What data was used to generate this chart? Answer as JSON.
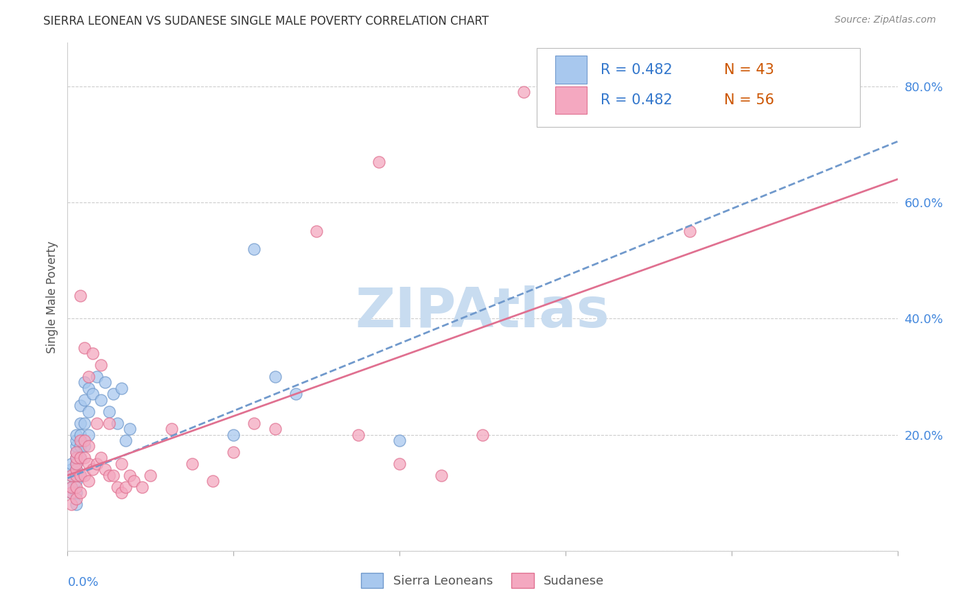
{
  "title": "SIERRA LEONEAN VS SUDANESE SINGLE MALE POVERTY CORRELATION CHART",
  "source": "Source: ZipAtlas.com",
  "ylabel": "Single Male Poverty",
  "r_sl": 0.482,
  "n_sl": 43,
  "r_su": 0.482,
  "n_su": 56,
  "xlim": [
    0.0,
    0.2
  ],
  "ylim": [
    0.0,
    0.875
  ],
  "yticks": [
    0.2,
    0.4,
    0.6,
    0.8
  ],
  "ytick_labels": [
    "20.0%",
    "40.0%",
    "60.0%",
    "80.0%"
  ],
  "color_sl": "#A8C8EE",
  "color_su": "#F4A8C0",
  "color_sl_line": "#7099CC",
  "color_su_line": "#E07090",
  "watermark_color": "#C8DCF0",
  "sl_x": [
    0.001,
    0.001,
    0.001,
    0.001,
    0.001,
    0.002,
    0.002,
    0.002,
    0.002,
    0.002,
    0.002,
    0.002,
    0.002,
    0.002,
    0.002,
    0.003,
    0.003,
    0.003,
    0.003,
    0.003,
    0.003,
    0.004,
    0.004,
    0.004,
    0.004,
    0.005,
    0.005,
    0.005,
    0.006,
    0.007,
    0.008,
    0.009,
    0.01,
    0.011,
    0.012,
    0.013,
    0.014,
    0.015,
    0.04,
    0.045,
    0.05,
    0.055,
    0.08
  ],
  "sl_y": [
    0.1,
    0.11,
    0.13,
    0.14,
    0.15,
    0.08,
    0.1,
    0.12,
    0.14,
    0.15,
    0.16,
    0.17,
    0.18,
    0.19,
    0.2,
    0.13,
    0.16,
    0.18,
    0.2,
    0.22,
    0.25,
    0.18,
    0.22,
    0.26,
    0.29,
    0.2,
    0.24,
    0.28,
    0.27,
    0.3,
    0.26,
    0.29,
    0.24,
    0.27,
    0.22,
    0.28,
    0.19,
    0.21,
    0.2,
    0.52,
    0.3,
    0.27,
    0.19
  ],
  "su_x": [
    0.001,
    0.001,
    0.001,
    0.001,
    0.002,
    0.002,
    0.002,
    0.002,
    0.002,
    0.002,
    0.002,
    0.003,
    0.003,
    0.003,
    0.003,
    0.003,
    0.004,
    0.004,
    0.004,
    0.004,
    0.005,
    0.005,
    0.005,
    0.005,
    0.006,
    0.006,
    0.007,
    0.007,
    0.008,
    0.008,
    0.009,
    0.01,
    0.01,
    0.011,
    0.012,
    0.013,
    0.013,
    0.014,
    0.015,
    0.016,
    0.018,
    0.02,
    0.025,
    0.03,
    0.035,
    0.04,
    0.045,
    0.05,
    0.06,
    0.07,
    0.075,
    0.08,
    0.09,
    0.1,
    0.11,
    0.15
  ],
  "su_y": [
    0.08,
    0.1,
    0.11,
    0.13,
    0.09,
    0.11,
    0.13,
    0.14,
    0.15,
    0.16,
    0.17,
    0.1,
    0.13,
    0.16,
    0.19,
    0.44,
    0.13,
    0.16,
    0.19,
    0.35,
    0.12,
    0.15,
    0.18,
    0.3,
    0.14,
    0.34,
    0.15,
    0.22,
    0.16,
    0.32,
    0.14,
    0.13,
    0.22,
    0.13,
    0.11,
    0.1,
    0.15,
    0.11,
    0.13,
    0.12,
    0.11,
    0.13,
    0.21,
    0.15,
    0.12,
    0.17,
    0.22,
    0.21,
    0.55,
    0.2,
    0.67,
    0.15,
    0.13,
    0.2,
    0.79,
    0.55
  ]
}
